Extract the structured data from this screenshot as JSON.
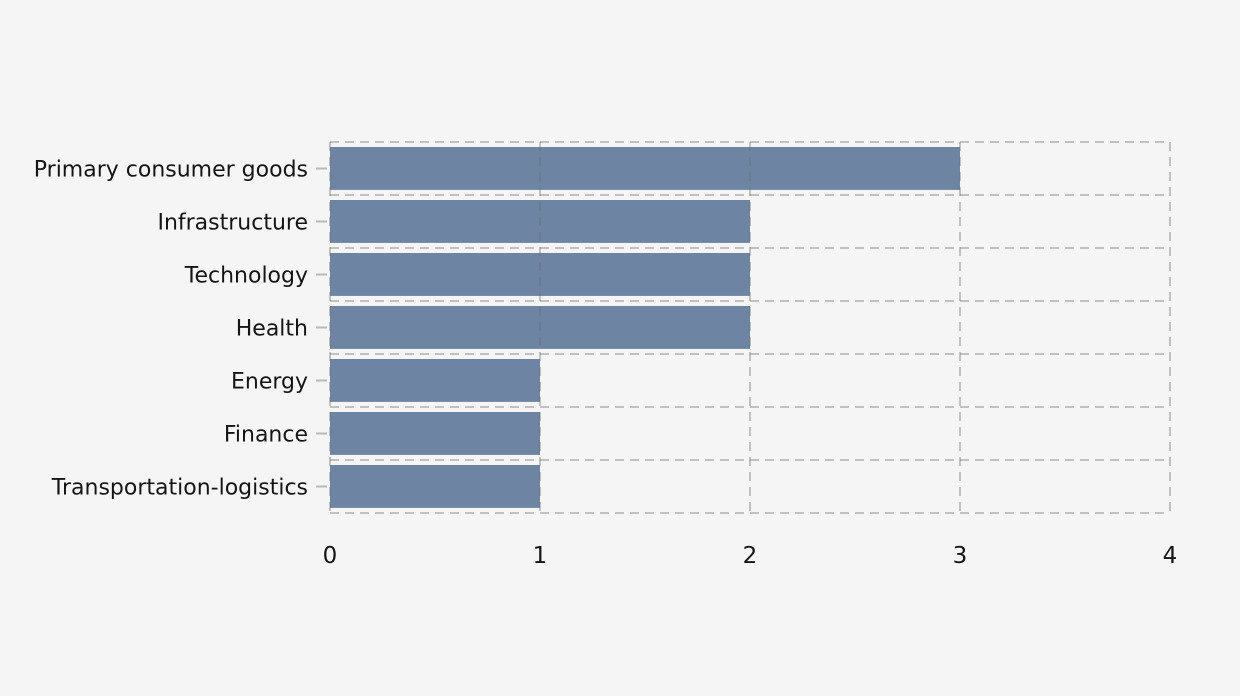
{
  "figure": {
    "background": "#f5f5f5"
  },
  "chart_data": {
    "type": "bar",
    "orientation": "horizontal",
    "title": "",
    "xlabel": "",
    "ylabel": "",
    "categories": [
      "Primary consumer goods",
      "Infrastructure",
      "Technology",
      "Health",
      "Energy",
      "Finance",
      "Transportation-logistics"
    ],
    "values": [
      3,
      2,
      2,
      2,
      1,
      1,
      1
    ],
    "xlim": [
      0,
      4
    ],
    "xticks": [
      "0",
      "1",
      "2",
      "3",
      "4"
    ],
    "xtick_values": [
      0,
      1,
      2,
      3,
      4
    ],
    "grid": {
      "on": true,
      "style": "dashed",
      "axes": "both"
    },
    "legend": null,
    "colors": {
      "bar": "#6d85a2",
      "background": "#f5f5f5",
      "grid_line": "rgba(108,108,108,0.38)",
      "axis_tick": "#b9b9b9",
      "text": "#151515"
    }
  }
}
